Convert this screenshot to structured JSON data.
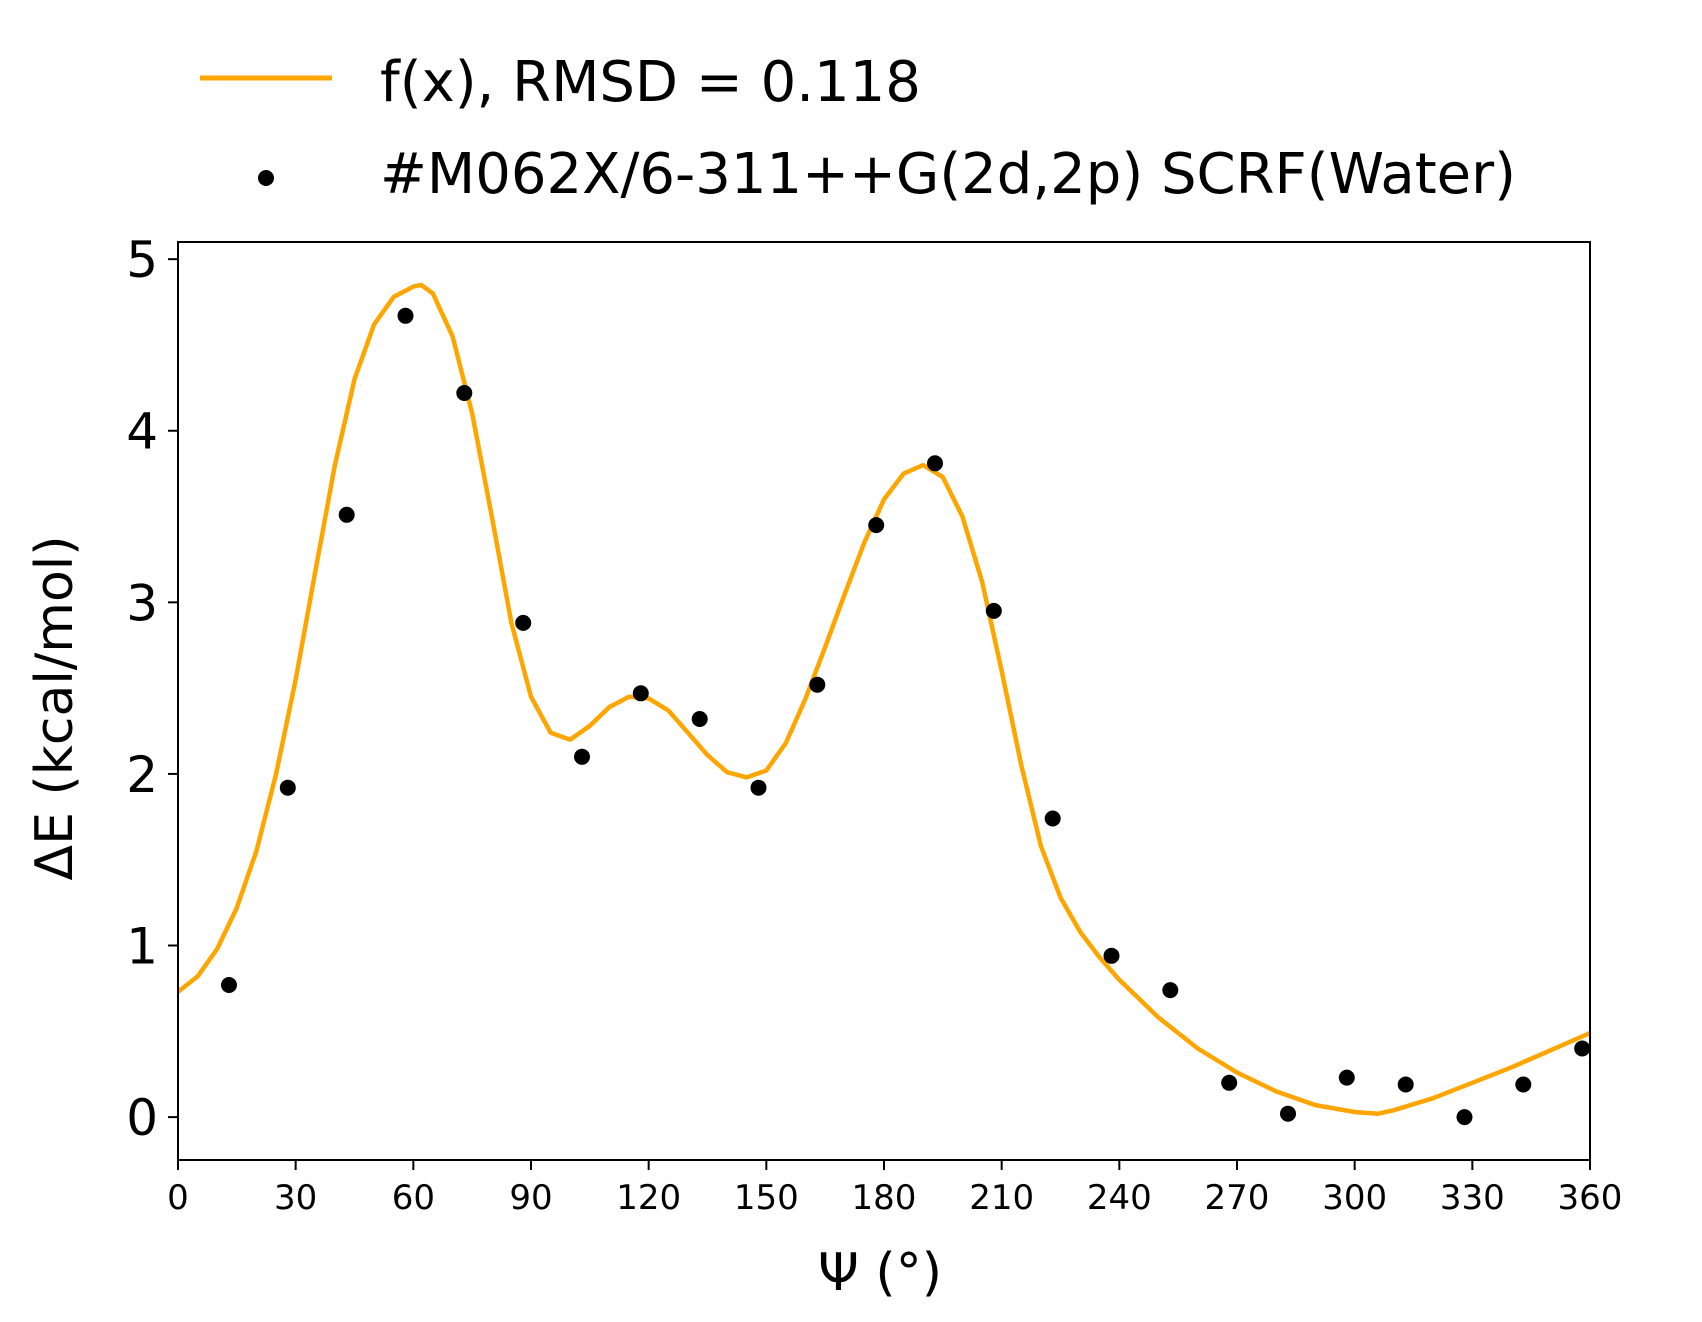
{
  "chart_data": {
    "type": "scatter",
    "xlabel": "Ψ (°)",
    "ylabel": "ΔE (kcal/mol)",
    "xlim": [
      0,
      360
    ],
    "ylim": [
      -0.25,
      5.1
    ],
    "xticks": [
      0,
      30,
      60,
      90,
      120,
      150,
      180,
      210,
      240,
      270,
      300,
      330,
      360
    ],
    "yticks": [
      0,
      1,
      2,
      3,
      4,
      5
    ],
    "grid": false,
    "legend_position": "above plot, left",
    "series": [
      {
        "name": "f(x), RMSD = 0.118",
        "type": "line",
        "color": "#FFA500",
        "x": [
          0,
          5,
          10,
          15,
          20,
          25,
          30,
          35,
          40,
          45,
          50,
          55,
          60,
          62,
          65,
          70,
          75,
          80,
          85,
          90,
          95,
          100,
          105,
          110,
          115,
          120,
          125,
          130,
          135,
          140,
          145,
          150,
          155,
          160,
          165,
          170,
          175,
          180,
          185,
          190,
          195,
          200,
          205,
          210,
          215,
          220,
          225,
          230,
          235,
          240,
          250,
          260,
          270,
          280,
          290,
          300,
          306,
          310,
          320,
          330,
          340,
          350,
          360
        ],
        "y": [
          0.73,
          0.82,
          0.98,
          1.22,
          1.55,
          2.0,
          2.55,
          3.18,
          3.8,
          4.3,
          4.62,
          4.78,
          4.84,
          4.85,
          4.8,
          4.55,
          4.1,
          3.5,
          2.88,
          2.45,
          2.24,
          2.2,
          2.28,
          2.39,
          2.45,
          2.44,
          2.37,
          2.24,
          2.11,
          2.01,
          1.98,
          2.02,
          2.18,
          2.44,
          2.74,
          3.05,
          3.35,
          3.6,
          3.75,
          3.8,
          3.73,
          3.5,
          3.12,
          2.6,
          2.05,
          1.58,
          1.28,
          1.08,
          0.93,
          0.8,
          0.58,
          0.4,
          0.26,
          0.15,
          0.07,
          0.03,
          0.02,
          0.04,
          0.11,
          0.2,
          0.29,
          0.39,
          0.49
        ]
      },
      {
        "name": "#M062X/6-311++G(2d,2p) SCRF(Water)",
        "type": "scatter",
        "color": "#000000",
        "x": [
          13,
          28,
          43,
          58,
          73,
          88,
          103,
          118,
          133,
          148,
          163,
          178,
          193,
          208,
          223,
          238,
          253,
          268,
          283,
          298,
          313,
          328,
          343,
          358
        ],
        "y": [
          0.77,
          1.92,
          3.51,
          4.67,
          4.22,
          2.88,
          2.1,
          2.47,
          2.32,
          1.92,
          2.52,
          3.45,
          3.81,
          2.95,
          1.74,
          0.94,
          0.74,
          0.2,
          0.02,
          0.23,
          0.19,
          0.0,
          0.19,
          0.4
        ]
      }
    ]
  }
}
